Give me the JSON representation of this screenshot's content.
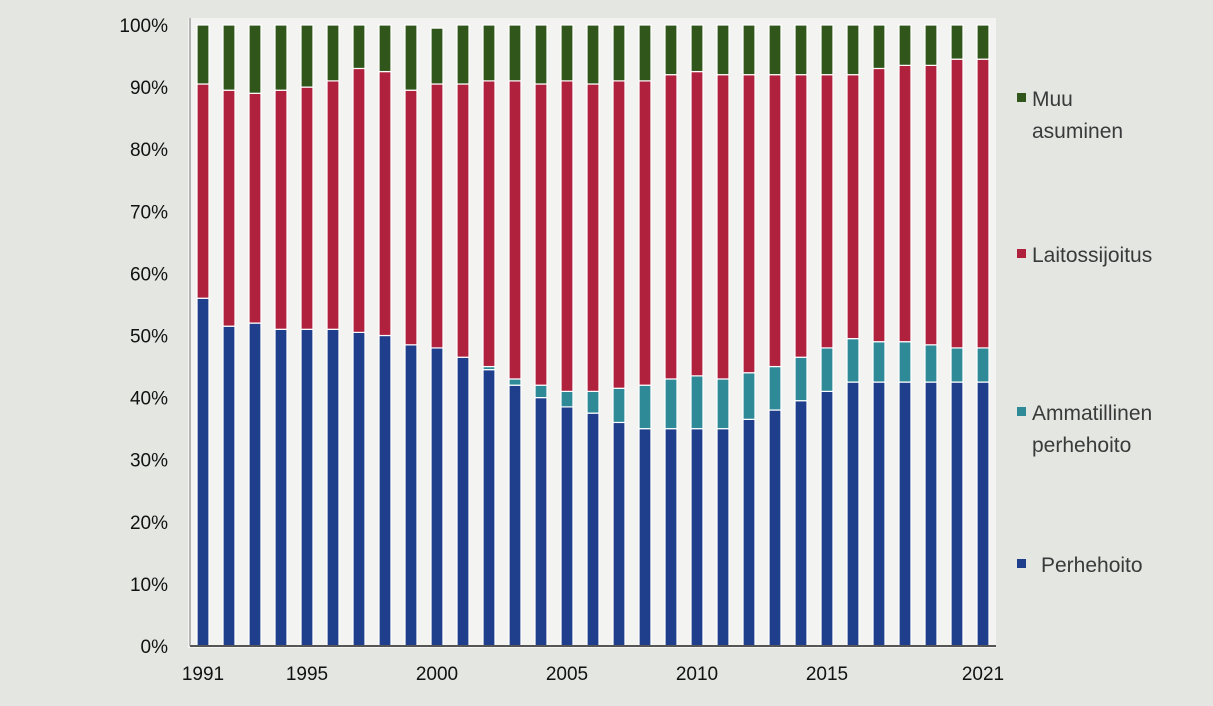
{
  "chart_data": {
    "type": "bar",
    "stacked": true,
    "percent": true,
    "x": [
      1991,
      1992,
      1993,
      1994,
      1995,
      1996,
      1997,
      1998,
      1999,
      2000,
      2001,
      2002,
      2003,
      2004,
      2005,
      2006,
      2007,
      2008,
      2009,
      2010,
      2011,
      2012,
      2013,
      2014,
      2015,
      2016,
      2017,
      2018,
      2019,
      2020,
      2021
    ],
    "x_tick_labels": [
      "1991",
      "1995",
      "2000",
      "2005",
      "2010",
      "2015",
      "2021"
    ],
    "x_tick_values": [
      1991,
      1995,
      2000,
      2005,
      2010,
      2015,
      2021
    ],
    "y_tick_labels": [
      "0%",
      "10%",
      "20%",
      "30%",
      "40%",
      "50%",
      "60%",
      "70%",
      "80%",
      "90%",
      "100%"
    ],
    "ylim": [
      0,
      100
    ],
    "grid": false,
    "legend_position": "right",
    "series": [
      {
        "name": "Perhehoito",
        "color": "#1f3f8c",
        "values": [
          56,
          51.5,
          52,
          51,
          51,
          51,
          50.5,
          50,
          48.5,
          48,
          46.5,
          44.5,
          42,
          40,
          38.5,
          37.5,
          36,
          35,
          35,
          35,
          35,
          36.5,
          38,
          39.5,
          41,
          42.5,
          42.5,
          42.5,
          42.5,
          42.5,
          42.5
        ]
      },
      {
        "name": "Ammatillinen perhehoito",
        "color": "#2f8a98",
        "values": [
          0,
          0,
          0,
          0,
          0,
          0,
          0,
          0,
          0,
          0,
          0,
          0.5,
          1,
          2,
          2.5,
          3.5,
          5.5,
          7,
          8,
          8.5,
          8,
          7.5,
          7,
          7,
          7,
          7,
          6.5,
          6.5,
          6,
          5.5,
          5.5
        ]
      },
      {
        "name": "Laitossijoitus",
        "color": "#b0213e",
        "values": [
          34.5,
          38,
          37,
          38.5,
          39,
          40,
          42.5,
          42.5,
          41,
          42.5,
          44,
          46,
          48,
          48.5,
          50,
          49.5,
          49.5,
          49,
          49,
          49,
          49,
          48,
          47,
          45.5,
          44,
          42.5,
          44,
          44.5,
          45,
          46.5,
          46.5
        ]
      },
      {
        "name": "Muu asuminen",
        "color": "#31561b",
        "values": [
          9.5,
          10.5,
          11,
          10.5,
          10,
          9,
          7,
          7.5,
          10.5,
          9,
          9.5,
          9,
          9,
          9.5,
          9,
          9.5,
          9,
          9,
          8,
          7.5,
          8,
          8,
          8,
          8,
          8,
          8,
          7,
          6.5,
          6.5,
          5.5,
          5.5
        ]
      }
    ],
    "legend": [
      {
        "lines": [
          "Muu",
          "asuminen"
        ],
        "series_index": 3
      },
      {
        "lines": [
          "Laitossijoitus"
        ],
        "series_index": 2
      },
      {
        "lines": [
          "Ammatillinen",
          "perhehoito"
        ],
        "series_index": 1
      },
      {
        "lines": [
          "Perhehoito"
        ],
        "series_index": 0
      }
    ]
  }
}
